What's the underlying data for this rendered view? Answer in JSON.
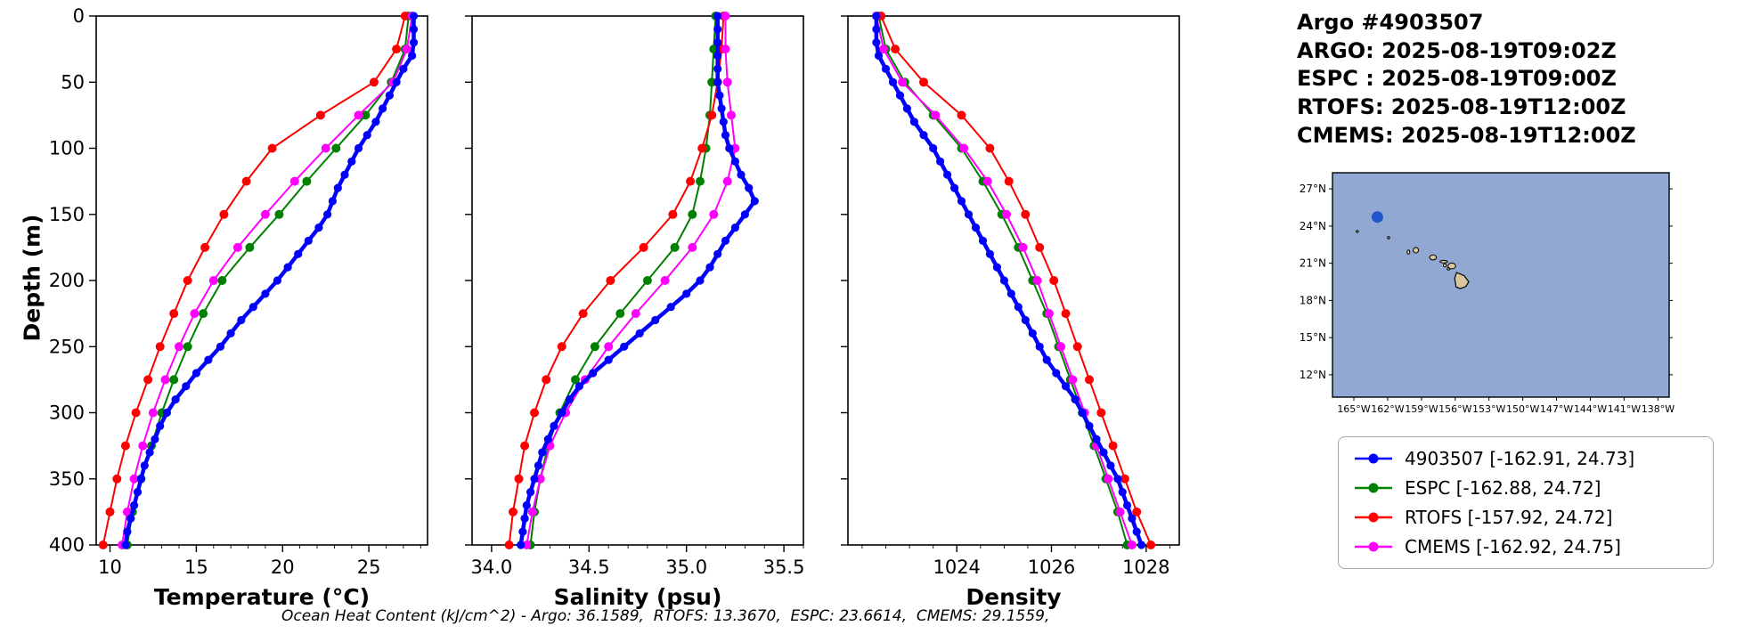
{
  "info": {
    "lines": [
      "Argo #4903507",
      "ARGO: 2025-08-19T09:02Z",
      "ESPC : 2025-08-19T09:00Z",
      "RTOFS: 2025-08-19T12:00Z",
      "CMEMS: 2025-08-19T12:00Z"
    ]
  },
  "labels": {
    "ylabel": "Depth (m)"
  },
  "footer": {
    "text": "Ocean Heat Content (kJ/cm^2) - Argo: 36.1589,  RTOFS: 13.3670,  ESPC: 23.6614,  CMEMS: 29.1559,"
  },
  "legend": {
    "position": "outside-right-bottom",
    "items": [
      {
        "name": "4903507",
        "label": "4903507 [-162.91, 24.73]",
        "color": "#0000ff"
      },
      {
        "name": "ESPC",
        "label": "ESPC [-162.88, 24.72]",
        "color": "#008000"
      },
      {
        "name": "RTOFS",
        "label": "RTOFS [-157.92, 24.72]",
        "color": "#ff0000"
      },
      {
        "name": "CMEMS",
        "label": "CMEMS [-162.92, 24.75]",
        "color": "#ff00ff"
      }
    ]
  },
  "map": {
    "lon_range": [
      -166.9,
      -137.0
    ],
    "lat_range": [
      10.2,
      28.3
    ],
    "ocean_color": "#90a8d2",
    "land_color": "#d9c59e",
    "float": {
      "lon": -162.91,
      "lat": 24.73,
      "color": "#2255cc"
    },
    "xticks": [
      {
        "lon": -165,
        "label": "165°W"
      },
      {
        "lon": -162,
        "label": "162°W"
      },
      {
        "lon": -159,
        "label": "159°W"
      },
      {
        "lon": -156,
        "label": "156°W"
      },
      {
        "lon": -153,
        "label": "153°W"
      },
      {
        "lon": -150,
        "label": "150°W"
      },
      {
        "lon": -147,
        "label": "147°W"
      },
      {
        "lon": -144,
        "label": "144°W"
      },
      {
        "lon": -141,
        "label": "141°W"
      },
      {
        "lon": -138,
        "label": "138°W"
      }
    ],
    "yticks": [
      {
        "lat": 27,
        "label": "27°N"
      },
      {
        "lat": 24,
        "label": "24°N"
      },
      {
        "lat": 21,
        "label": "21°N"
      },
      {
        "lat": 18,
        "label": "18°N"
      },
      {
        "lat": 15,
        "label": "15°N"
      },
      {
        "lat": 12,
        "label": "12°N"
      }
    ],
    "islands": [
      {
        "name": "necker",
        "lon": -164.7,
        "lat": 23.57,
        "rx": 0.07,
        "ry": 0.07
      },
      {
        "name": "nihoa",
        "lon": -161.92,
        "lat": 23.06,
        "rx": 0.07,
        "ry": 0.07
      },
      {
        "name": "niihau",
        "lon": -160.15,
        "lat": 21.9,
        "rx": 0.12,
        "ry": 0.17
      },
      {
        "name": "kauai",
        "lon": -159.5,
        "lat": 22.05,
        "rx": 0.24,
        "ry": 0.22
      },
      {
        "name": "oahu",
        "lon": -157.97,
        "lat": 21.47,
        "rx": 0.3,
        "ry": 0.2
      },
      {
        "name": "molokai",
        "lon": -157.02,
        "lat": 21.13,
        "rx": 0.33,
        "ry": 0.1
      },
      {
        "name": "lanai",
        "lon": -156.92,
        "lat": 20.82,
        "rx": 0.14,
        "ry": 0.12
      },
      {
        "name": "kahoolawe",
        "lon": -156.6,
        "lat": 20.54,
        "rx": 0.12,
        "ry": 0.08
      },
      {
        "name": "maui",
        "lon": -156.3,
        "lat": 20.78,
        "rx": 0.34,
        "ry": 0.24
      },
      {
        "name": "hawaii",
        "poly": [
          [
            -155.88,
            20.25
          ],
          [
            -155.2,
            20.0
          ],
          [
            -154.8,
            19.5
          ],
          [
            -155.05,
            19.13
          ],
          [
            -155.55,
            18.95
          ],
          [
            -155.93,
            19.1
          ],
          [
            -156.05,
            19.78
          ]
        ]
      }
    ]
  },
  "chart_data": [
    {
      "type": "line",
      "title": "",
      "xlabel": "Temperature (°C)",
      "ylabel": "Depth (m)",
      "xlim": [
        9.2,
        28.4
      ],
      "ylim": [
        0,
        400
      ],
      "xticks": [
        10,
        15,
        20,
        25
      ],
      "xticklabels": [
        "10",
        "15",
        "20",
        "25"
      ],
      "xminor": 1,
      "yticks": [
        0,
        50,
        100,
        150,
        200,
        250,
        300,
        350,
        400
      ],
      "grid": false,
      "series": [
        {
          "name": "4903507",
          "color": "#0000ff",
          "emphasis": true,
          "depth": [
            0,
            10,
            20,
            30,
            40,
            50,
            60,
            70,
            80,
            90,
            100,
            110,
            120,
            130,
            140,
            150,
            160,
            170,
            180,
            190,
            200,
            210,
            220,
            230,
            240,
            250,
            260,
            270,
            280,
            290,
            300,
            310,
            320,
            330,
            340,
            350,
            360,
            370,
            380,
            390,
            400
          ],
          "values": [
            27.6,
            27.6,
            27.6,
            27.5,
            27.0,
            26.6,
            26.2,
            25.8,
            25.4,
            24.9,
            24.4,
            24.0,
            23.6,
            23.2,
            22.9,
            22.6,
            22.1,
            21.5,
            20.9,
            20.3,
            19.7,
            19.0,
            18.3,
            17.6,
            17.0,
            16.4,
            15.7,
            15.0,
            14.4,
            13.8,
            13.3,
            12.9,
            12.6,
            12.3,
            12.0,
            11.8,
            11.6,
            11.4,
            11.2,
            11.0,
            10.9
          ]
        },
        {
          "name": "ESPC",
          "color": "#008000",
          "emphasis": false,
          "depth": [
            0,
            25,
            50,
            75,
            100,
            125,
            150,
            175,
            200,
            225,
            250,
            275,
            300,
            325,
            350,
            375,
            400
          ],
          "values": [
            27.3,
            27.1,
            26.3,
            24.8,
            23.1,
            21.4,
            19.8,
            18.1,
            16.5,
            15.4,
            14.5,
            13.7,
            13.0,
            12.4,
            11.8,
            11.3,
            11.0
          ]
        },
        {
          "name": "RTOFS",
          "color": "#ff0000",
          "emphasis": false,
          "depth": [
            0,
            25,
            50,
            75,
            100,
            125,
            150,
            175,
            200,
            225,
            250,
            275,
            300,
            325,
            350,
            375,
            400
          ],
          "values": [
            27.1,
            26.6,
            25.3,
            22.2,
            19.4,
            17.9,
            16.6,
            15.5,
            14.5,
            13.7,
            12.9,
            12.2,
            11.5,
            10.9,
            10.4,
            10.0,
            9.6
          ]
        },
        {
          "name": "CMEMS",
          "color": "#ff00ff",
          "emphasis": false,
          "depth": [
            0,
            25,
            50,
            75,
            100,
            125,
            150,
            175,
            200,
            225,
            250,
            275,
            300,
            325,
            350,
            375,
            400
          ],
          "values": [
            27.5,
            27.2,
            26.4,
            24.4,
            22.5,
            20.7,
            19.0,
            17.4,
            16.0,
            14.9,
            14.0,
            13.2,
            12.5,
            11.9,
            11.4,
            11.0,
            10.7
          ]
        }
      ]
    },
    {
      "type": "line",
      "title": "",
      "xlabel": "Salinity (psu)",
      "ylabel": "Depth (m)",
      "xlim": [
        33.9,
        35.6
      ],
      "ylim": [
        0,
        400
      ],
      "xticks": [
        34.0,
        34.5,
        35.0,
        35.5
      ],
      "xticklabels": [
        "34.0",
        "34.5",
        "35.0",
        "35.5"
      ],
      "xminor": 0.1,
      "yticks": [
        0,
        50,
        100,
        150,
        200,
        250,
        300,
        350,
        400
      ],
      "grid": false,
      "series": [
        {
          "name": "4903507",
          "color": "#0000ff",
          "emphasis": true,
          "depth": [
            0,
            10,
            20,
            30,
            40,
            50,
            60,
            70,
            80,
            90,
            100,
            110,
            120,
            130,
            140,
            150,
            160,
            170,
            180,
            190,
            200,
            210,
            220,
            230,
            240,
            250,
            260,
            270,
            280,
            290,
            300,
            310,
            320,
            330,
            340,
            350,
            360,
            370,
            380,
            390,
            400
          ],
          "values": [
            35.16,
            35.16,
            35.16,
            35.16,
            35.16,
            35.16,
            35.17,
            35.18,
            35.19,
            35.2,
            35.22,
            35.25,
            35.28,
            35.32,
            35.35,
            35.3,
            35.25,
            35.2,
            35.16,
            35.12,
            35.07,
            35.0,
            34.92,
            34.84,
            34.76,
            34.68,
            34.6,
            34.52,
            34.45,
            34.4,
            34.36,
            34.32,
            34.29,
            34.26,
            34.24,
            34.22,
            34.2,
            34.18,
            34.17,
            34.16,
            34.15
          ]
        },
        {
          "name": "ESPC",
          "color": "#008000",
          "emphasis": false,
          "depth": [
            0,
            25,
            50,
            75,
            100,
            125,
            150,
            175,
            200,
            225,
            250,
            275,
            300,
            325,
            350,
            375,
            400
          ],
          "values": [
            35.15,
            35.14,
            35.13,
            35.12,
            35.1,
            35.07,
            35.03,
            34.94,
            34.8,
            34.66,
            34.53,
            34.43,
            34.35,
            34.29,
            34.25,
            34.22,
            34.2
          ]
        },
        {
          "name": "RTOFS",
          "color": "#ff0000",
          "emphasis": false,
          "depth": [
            0,
            25,
            50,
            75,
            100,
            125,
            150,
            175,
            200,
            225,
            250,
            275,
            300,
            325,
            350,
            375,
            400
          ],
          "values": [
            35.19,
            35.18,
            35.16,
            35.13,
            35.08,
            35.02,
            34.93,
            34.78,
            34.61,
            34.47,
            34.36,
            34.28,
            34.22,
            34.17,
            34.14,
            34.11,
            34.09
          ]
        },
        {
          "name": "CMEMS",
          "color": "#ff00ff",
          "emphasis": false,
          "depth": [
            0,
            25,
            50,
            75,
            100,
            125,
            150,
            175,
            200,
            225,
            250,
            275,
            300,
            325,
            350,
            375,
            400
          ],
          "values": [
            35.2,
            35.2,
            35.21,
            35.23,
            35.25,
            35.21,
            35.14,
            35.03,
            34.89,
            34.74,
            34.6,
            34.48,
            34.38,
            34.3,
            34.25,
            34.21,
            34.18
          ]
        }
      ]
    },
    {
      "type": "line",
      "title": "",
      "xlabel": "Density",
      "ylabel": "Depth (m)",
      "xlim": [
        1021.7,
        1028.7
      ],
      "ylim": [
        0,
        400
      ],
      "xticks": [
        1024,
        1026,
        1028
      ],
      "xticklabels": [
        "1024",
        "1026",
        "1028"
      ],
      "xminor": 0.5,
      "yticks": [
        0,
        50,
        100,
        150,
        200,
        250,
        300,
        350,
        400
      ],
      "grid": false,
      "series": [
        {
          "name": "4903507",
          "color": "#0000ff",
          "emphasis": true,
          "depth": [
            0,
            10,
            20,
            30,
            40,
            50,
            60,
            70,
            80,
            90,
            100,
            110,
            120,
            130,
            140,
            150,
            160,
            170,
            180,
            190,
            200,
            210,
            220,
            230,
            240,
            250,
            260,
            270,
            280,
            290,
            300,
            310,
            320,
            330,
            340,
            350,
            360,
            370,
            380,
            390,
            400
          ],
          "values": [
            1022.3,
            1022.3,
            1022.3,
            1022.35,
            1022.5,
            1022.65,
            1022.8,
            1022.95,
            1023.1,
            1023.3,
            1023.5,
            1023.65,
            1023.8,
            1023.95,
            1024.1,
            1024.25,
            1024.4,
            1024.55,
            1024.7,
            1024.85,
            1025.0,
            1025.15,
            1025.3,
            1025.45,
            1025.6,
            1025.75,
            1025.9,
            1026.1,
            1026.3,
            1026.5,
            1026.65,
            1026.8,
            1026.95,
            1027.1,
            1027.25,
            1027.4,
            1027.5,
            1027.6,
            1027.7,
            1027.8,
            1027.9
          ]
        },
        {
          "name": "ESPC",
          "color": "#008000",
          "emphasis": false,
          "depth": [
            0,
            25,
            50,
            75,
            100,
            125,
            150,
            175,
            200,
            225,
            250,
            275,
            300,
            325,
            350,
            375,
            400
          ],
          "values": [
            1022.35,
            1022.5,
            1022.9,
            1023.5,
            1024.1,
            1024.55,
            1024.95,
            1025.3,
            1025.6,
            1025.9,
            1026.15,
            1026.4,
            1026.65,
            1026.9,
            1027.15,
            1027.4,
            1027.6
          ]
        },
        {
          "name": "RTOFS",
          "color": "#ff0000",
          "emphasis": false,
          "depth": [
            0,
            25,
            50,
            75,
            100,
            125,
            150,
            175,
            200,
            225,
            250,
            275,
            300,
            325,
            350,
            375,
            400
          ],
          "values": [
            1022.4,
            1022.7,
            1023.3,
            1024.1,
            1024.7,
            1025.1,
            1025.45,
            1025.75,
            1026.05,
            1026.3,
            1026.55,
            1026.8,
            1027.05,
            1027.3,
            1027.55,
            1027.8,
            1028.1
          ]
        },
        {
          "name": "CMEMS",
          "color": "#ff00ff",
          "emphasis": false,
          "depth": [
            0,
            25,
            50,
            75,
            100,
            125,
            150,
            175,
            200,
            225,
            250,
            275,
            300,
            325,
            350,
            375,
            400
          ],
          "values": [
            1022.3,
            1022.45,
            1022.85,
            1023.55,
            1024.15,
            1024.65,
            1025.05,
            1025.4,
            1025.7,
            1025.95,
            1026.2,
            1026.45,
            1026.7,
            1026.95,
            1027.2,
            1027.45,
            1027.7
          ]
        }
      ]
    }
  ]
}
